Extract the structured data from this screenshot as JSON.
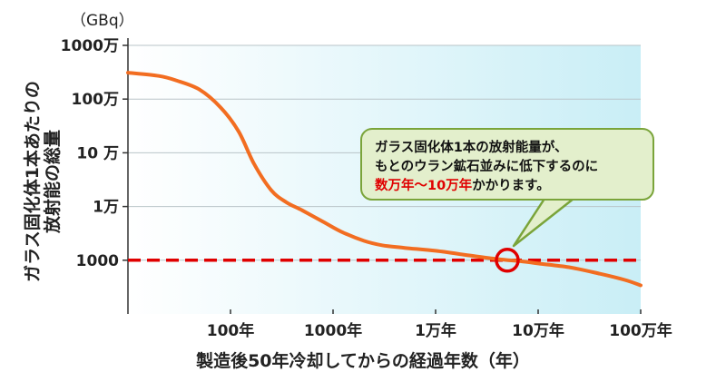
{
  "chart_data": {
    "type": "line",
    "title": "",
    "ylabel": "ガラス固化体1本あたりの放射能の総量",
    "ylabel_lines": [
      "ガラス固化体1本あたりの",
      "放射能の総量"
    ],
    "y_unit": "（GBq）",
    "xlabel": "製造後50年冷却してからの経過年数（年）",
    "x_scale": "log",
    "y_scale": "log",
    "xlim": [
      10,
      1000000
    ],
    "ylim": [
      100,
      10000000
    ],
    "x_ticks": [
      {
        "value": 100,
        "label": "100年"
      },
      {
        "value": 1000,
        "label": "1000年"
      },
      {
        "value": 10000,
        "label": "1万年"
      },
      {
        "value": 100000,
        "label": "10万年"
      },
      {
        "value": 1000000,
        "label": "100万年"
      }
    ],
    "y_ticks": [
      {
        "value": 1000,
        "label": "1000"
      },
      {
        "value": 10000,
        "label": "1万"
      },
      {
        "value": 100000,
        "label": "10 万"
      },
      {
        "value": 1000000,
        "label": "100万"
      },
      {
        "value": 10000000,
        "label": "1000万"
      }
    ],
    "grid": true,
    "series": [
      {
        "color": "#f26d21",
        "x": [
          10,
          20,
          30,
          50,
          80,
          120,
          170,
          250,
          350,
          500,
          800,
          1200,
          2000,
          3000,
          5000,
          10000,
          20000,
          40000,
          70000,
          100000,
          200000,
          400000,
          700000,
          1000000
        ],
        "y": [
          3100000,
          2700000,
          2200000,
          1500000,
          700000,
          250000,
          62000,
          20000,
          12000,
          8500,
          5200,
          3400,
          2300,
          1900,
          1700,
          1500,
          1250,
          1050,
          950,
          870,
          740,
          560,
          430,
          340
        ]
      }
    ],
    "reference_line": {
      "value": 1000,
      "color": "#e00000",
      "style": "dashed"
    },
    "marker": {
      "x": 50000,
      "y": 1000,
      "color": "#e00000",
      "shape": "circle"
    }
  },
  "callout": {
    "line1": "ガラス固化体1本の放射能量が、",
    "line2": "もとのウラン鉱石並みに低下するのに",
    "line3_highlight": "数万年～10万年",
    "line3_rest": "かかります。"
  }
}
